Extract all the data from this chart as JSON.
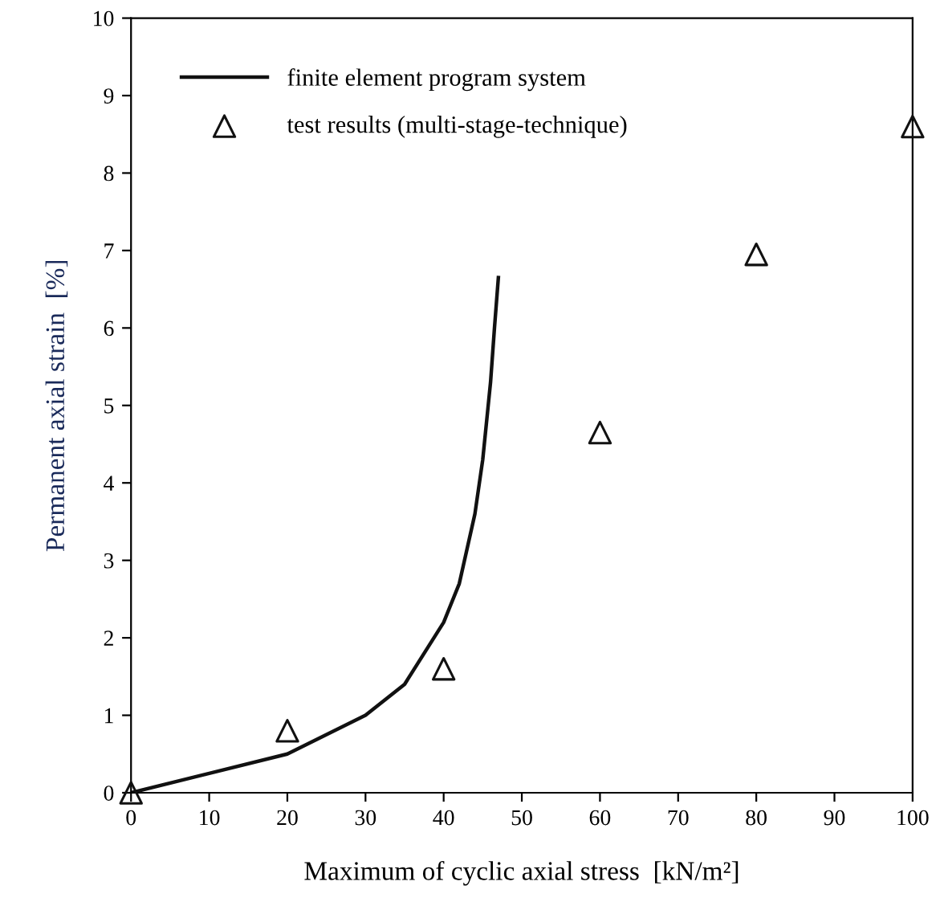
{
  "chart_data": {
    "type": "line",
    "xlabel": "Maximum of cyclic axial stress  [kN/m²]",
    "ylabel": "Permanent axial strain  [%]",
    "xlim": [
      0,
      100
    ],
    "ylim": [
      0,
      10
    ],
    "xticks": [
      0,
      10,
      20,
      30,
      40,
      50,
      60,
      70,
      80,
      90,
      100
    ],
    "yticks": [
      0,
      1,
      2,
      3,
      4,
      5,
      6,
      7,
      8,
      9,
      10
    ],
    "grid": false,
    "legend": "top left",
    "series": [
      {
        "name": "finite element program system",
        "color": "#111111",
        "marker": "none",
        "line_style": "solid",
        "x": [
          0,
          10,
          20,
          30,
          35,
          40,
          42,
          44,
          45,
          46,
          46.5,
          47
        ],
        "values": [
          0,
          0.25,
          0.5,
          1.0,
          1.4,
          2.2,
          2.7,
          3.6,
          4.3,
          5.3,
          6.0,
          6.65
        ]
      },
      {
        "name": "test results (multi-stage-technique)",
        "type": "scatter",
        "color": "#111111",
        "marker": "triangle",
        "x": [
          0,
          20,
          40,
          60,
          80,
          100
        ],
        "values": [
          0,
          0.8,
          1.6,
          4.65,
          6.95,
          8.6
        ]
      }
    ]
  }
}
